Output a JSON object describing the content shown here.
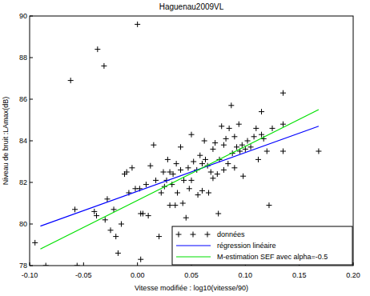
{
  "chart_data": {
    "type": "scatter",
    "title": "Haguenau2009VL",
    "x_label": "Vitesse modifiée : log10(vitesse/90)",
    "y_label": "Niveau de bruit :LAmax(dB)",
    "xlim": [
      -0.1,
      0.2
    ],
    "xticks": [
      {
        "value": -0.1,
        "label": "-0.10"
      },
      {
        "value": -0.05,
        "label": "-0.05"
      },
      {
        "value": 0,
        "label": "0.00"
      },
      {
        "value": 0.05,
        "label": "0.05"
      },
      {
        "value": 0.1,
        "label": "0.10"
      },
      {
        "value": 0.15,
        "label": "0.15"
      },
      {
        "value": 0.2,
        "label": "0.20"
      }
    ],
    "ylim": [
      78,
      90
    ],
    "yticks": [
      78,
      80,
      82,
      84,
      86,
      88,
      90
    ],
    "grid": false,
    "legend": "lower right",
    "series": [
      {
        "name": "données",
        "type": "scatter",
        "marker": "plus",
        "color": "#000000",
        "x": [
          -0.095,
          -0.085,
          -0.062,
          -0.058,
          -0.056,
          -0.04,
          -0.038,
          -0.037,
          -0.031,
          -0.03,
          -0.028,
          -0.025,
          -0.022,
          -0.02,
          -0.018,
          -0.015,
          -0.012,
          -0.01,
          -0.008,
          -0.005,
          -0.002,
          0,
          0.002,
          0.003,
          0.003,
          0.005,
          0.008,
          0.01,
          0.012,
          0.015,
          0.017,
          0.02,
          0.022,
          0.024,
          0.025,
          0.027,
          0.028,
          0.03,
          0.03,
          0.032,
          0.033,
          0.035,
          0.036,
          0.037,
          0.04,
          0.04,
          0.042,
          0.043,
          0.045,
          0.047,
          0.048,
          0.05,
          0.05,
          0.052,
          0.055,
          0.056,
          0.058,
          0.06,
          0.06,
          0.062,
          0.063,
          0.065,
          0.066,
          0.068,
          0.07,
          0.07,
          0.072,
          0.074,
          0.075,
          0.076,
          0.078,
          0.08,
          0.08,
          0.082,
          0.084,
          0.085,
          0.087,
          0.088,
          0.09,
          0.09,
          0.092,
          0.094,
          0.095,
          0.097,
          0.098,
          0.1,
          0.102,
          0.105,
          0.108,
          0.11,
          0.112,
          0.115,
          0.115,
          0.117,
          0.12,
          0.122,
          0.125,
          0.135,
          0.135,
          0.135,
          0.168
        ],
        "values": [
          79.1,
          78.0,
          86.9,
          80.7,
          78.0,
          80.6,
          80.4,
          88.4,
          87.6,
          80.2,
          81.2,
          79.7,
          80.7,
          79.4,
          78.6,
          80.0,
          82.4,
          82.5,
          81.5,
          82.7,
          81.7,
          89.6,
          81.7,
          78.3,
          80.5,
          80.5,
          81.9,
          80.4,
          82.8,
          83.8,
          82.1,
          79.4,
          81.5,
          82.5,
          81.8,
          82.1,
          83.1,
          82.5,
          80.9,
          81.9,
          82.4,
          80.9,
          82.9,
          81.5,
          82.6,
          83.7,
          81.0,
          82.1,
          80.3,
          82.7,
          81.7,
          82.1,
          84.3,
          83.0,
          82.6,
          81.4,
          83.3,
          81.6,
          82.9,
          84.0,
          83.1,
          82.8,
          81.5,
          82.5,
          83.6,
          82.2,
          83.9,
          82.4,
          80.5,
          83.1,
          84.7,
          82.6,
          83.8,
          84.1,
          82.9,
          84.6,
          85.7,
          83.4,
          82.7,
          84.2,
          83.7,
          84.8,
          83.5,
          83.8,
          82.3,
          83.6,
          84.0,
          83.7,
          84.2,
          84.6,
          83.1,
          85.4,
          84.3,
          84.1,
          83.5,
          80.9,
          84.6,
          86.3,
          84.8,
          83.5,
          83.5
        ]
      },
      {
        "name": "régression linéaire",
        "type": "line",
        "line_style": "solid",
        "color": "#0000ff",
        "x": [
          -0.09,
          0.168
        ],
        "values": [
          79.9,
          84.7
        ]
      },
      {
        "name": "M-estimation SEF avec alpha=-0.5",
        "type": "line",
        "line_style": "solid",
        "color": "#00e000",
        "x": [
          -0.09,
          0.168
        ],
        "values": [
          78.8,
          85.5
        ]
      }
    ]
  }
}
